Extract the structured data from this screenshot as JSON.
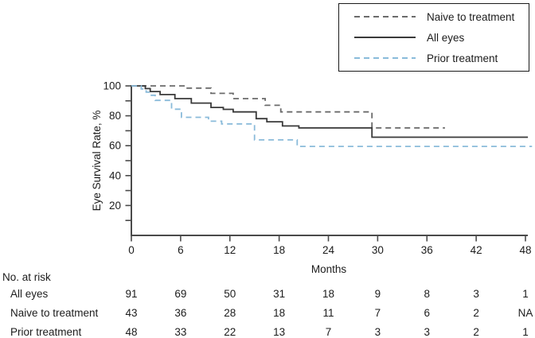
{
  "figure": {
    "kind": "kaplan-meier-eye-survival-plot",
    "background": "#ffffff",
    "axis_color": "#4a4a4a",
    "text_color": "#1c1c1c"
  },
  "legend": {
    "position": "top-right",
    "items": [
      {
        "label": "Naive to treatment",
        "line": "dashed",
        "color": "#6b6b6b"
      },
      {
        "label": "All eyes",
        "line": "solid",
        "color": "#3a3a3a"
      },
      {
        "label": "Prior treatment",
        "line": "dashed",
        "color": "#8abbda"
      }
    ]
  },
  "chart_data": {
    "type": "line",
    "subtype": "kaplan-meier-step",
    "title": "",
    "xlabel": "Months",
    "ylabel": "Eye Survival Rate, %",
    "xlim": [
      0,
      48
    ],
    "ylim": [
      0,
      100
    ],
    "x_ticks": [
      0,
      6,
      12,
      18,
      24,
      30,
      36,
      42,
      48
    ],
    "y_tick_labels": [
      20,
      40,
      60,
      80,
      100
    ],
    "y_minor_tick_step": 10,
    "grid": false,
    "legend_position": "top-right",
    "series": [
      {
        "name": "Naive to treatment",
        "slug": "naive-to-treatment",
        "line": "dashed",
        "color": "#6b6b6b",
        "points": [
          [
            0,
            100
          ],
          [
            6.8,
            100
          ],
          [
            6.8,
            98.5
          ],
          [
            9.7,
            98.5
          ],
          [
            9.7,
            95.0
          ],
          [
            12.4,
            95.0
          ],
          [
            12.4,
            91.5
          ],
          [
            16.3,
            91.5
          ],
          [
            16.3,
            87.0
          ],
          [
            18.2,
            87.0
          ],
          [
            18.2,
            82.6
          ],
          [
            29.3,
            82.6
          ],
          [
            29.3,
            71.9
          ],
          [
            38.2,
            71.9
          ]
        ]
      },
      {
        "name": "All eyes",
        "slug": "all-eyes",
        "line": "solid",
        "color": "#3a3a3a",
        "points": [
          [
            0,
            100
          ],
          [
            1.7,
            100
          ],
          [
            1.7,
            98.2
          ],
          [
            2.3,
            98.2
          ],
          [
            2.3,
            96.2
          ],
          [
            3.5,
            96.2
          ],
          [
            3.5,
            94.2
          ],
          [
            5.3,
            94.2
          ],
          [
            5.3,
            91.5
          ],
          [
            7.3,
            91.5
          ],
          [
            7.3,
            88.5
          ],
          [
            9.7,
            88.5
          ],
          [
            9.7,
            85.6
          ],
          [
            11.2,
            85.6
          ],
          [
            11.2,
            84.3
          ],
          [
            12.4,
            84.3
          ],
          [
            12.4,
            82.6
          ],
          [
            15.2,
            82.6
          ],
          [
            15.2,
            78.1
          ],
          [
            16.5,
            78.1
          ],
          [
            16.5,
            76.0
          ],
          [
            18.4,
            76.0
          ],
          [
            18.4,
            73.2
          ],
          [
            20.4,
            73.2
          ],
          [
            20.4,
            71.9
          ],
          [
            29.3,
            71.9
          ],
          [
            29.3,
            65.7
          ],
          [
            48.3,
            65.7
          ]
        ]
      },
      {
        "name": "Prior treatment",
        "slug": "prior-treatment",
        "line": "dashed",
        "color": "#8abbda",
        "points": [
          [
            0,
            100
          ],
          [
            1.2,
            100
          ],
          [
            1.2,
            97.9
          ],
          [
            1.8,
            97.9
          ],
          [
            1.8,
            95.8
          ],
          [
            2.3,
            95.8
          ],
          [
            2.3,
            93.7
          ],
          [
            2.9,
            93.7
          ],
          [
            2.9,
            90.3
          ],
          [
            4.9,
            90.3
          ],
          [
            4.9,
            84.4
          ],
          [
            6.1,
            84.4
          ],
          [
            6.1,
            79.0
          ],
          [
            9.4,
            79.0
          ],
          [
            9.4,
            76.4
          ],
          [
            11.0,
            76.4
          ],
          [
            11.0,
            74.6
          ],
          [
            15.0,
            74.6
          ],
          [
            15.0,
            63.9
          ],
          [
            20.2,
            63.9
          ],
          [
            20.2,
            59.5
          ],
          [
            48.8,
            59.5
          ]
        ]
      }
    ]
  },
  "risk_table": {
    "title": "No. at risk",
    "months": [
      0,
      6,
      12,
      18,
      24,
      30,
      36,
      42,
      48
    ],
    "rows": [
      {
        "label": "All eyes",
        "values": [
          "91",
          "69",
          "50",
          "31",
          "18",
          "9",
          "8",
          "3",
          "1"
        ]
      },
      {
        "label": "Naive to treatment",
        "values": [
          "43",
          "36",
          "28",
          "18",
          "11",
          "7",
          "6",
          "2",
          "NA"
        ]
      },
      {
        "label": "Prior treatment",
        "values": [
          "48",
          "33",
          "22",
          "13",
          "7",
          "3",
          "3",
          "2",
          "1"
        ]
      }
    ]
  }
}
